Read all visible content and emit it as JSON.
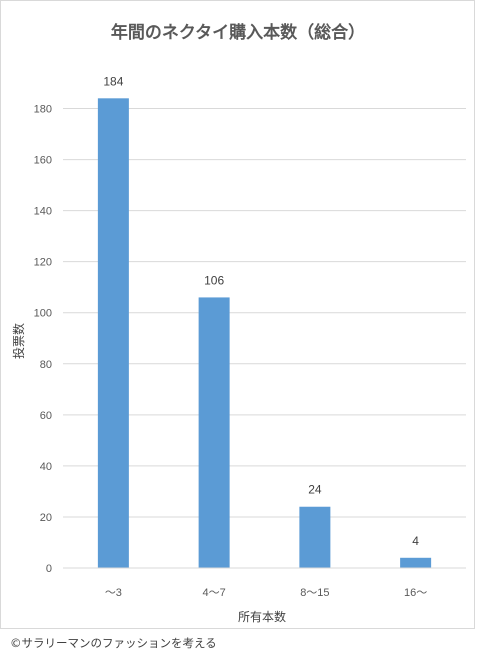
{
  "chart_data": {
    "type": "bar",
    "title": "年間のネクタイ購入本数（総合）",
    "xlabel": "所有本数",
    "ylabel": "投票数",
    "categories": [
      "～3",
      "4～7",
      "8～15",
      "16～"
    ],
    "values": [
      184,
      106,
      24,
      4
    ],
    "ylim": [
      0,
      190
    ],
    "yticks": [
      0,
      20,
      40,
      60,
      80,
      100,
      120,
      140,
      160,
      180
    ],
    "grid": true,
    "legend": "none",
    "bar_color": "#5b9bd5",
    "grid_color": "#d9d9d9"
  },
  "footer": {
    "credit": "©サラリーマンのファッションを考える"
  }
}
